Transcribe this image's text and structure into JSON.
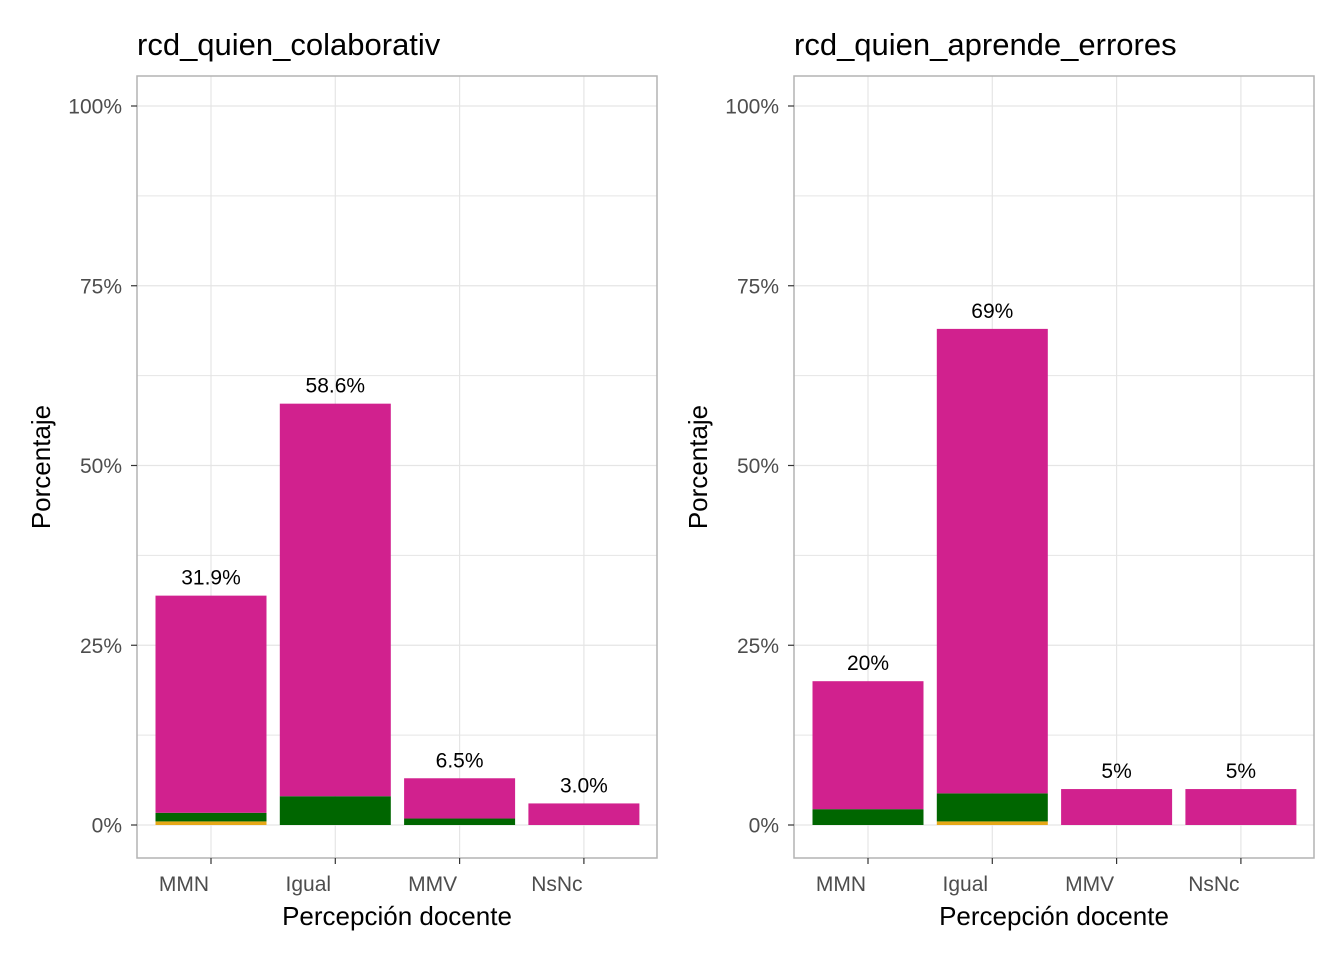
{
  "colors": {
    "background": "#ffffff",
    "panel_border": "#b3b3b3",
    "grid": "#e5e5e5",
    "tick_text": "#4d4d4d",
    "segment_magenta": "#d1218e",
    "segment_green": "#006600",
    "segment_orange": "#e6a817"
  },
  "chart_data": [
    {
      "type": "bar",
      "stacked": true,
      "title": "rcd_quien_colaborativ",
      "xlabel": "Percepción docente",
      "ylabel": "Porcentaje",
      "ylim": [
        0,
        100
      ],
      "yticks": [
        "0%",
        "25%",
        "50%",
        "75%",
        "100%"
      ],
      "ytick_values": [
        0,
        25,
        50,
        75,
        100
      ],
      "grid": true,
      "categories": [
        "MMN",
        "Igual",
        "MMV",
        "NsNc"
      ],
      "totals": [
        31.9,
        58.6,
        6.5,
        3.0
      ],
      "total_labels": [
        "31.9%",
        "58.6%",
        "6.5%",
        "3.0%"
      ],
      "series": [
        {
          "color": "#e6a817",
          "values": [
            0.5,
            0,
            0,
            0
          ]
        },
        {
          "color": "#006600",
          "values": [
            1.2,
            4.0,
            0.9,
            0
          ]
        },
        {
          "color": "#d1218e",
          "values": [
            30.2,
            54.6,
            5.6,
            3.0
          ]
        }
      ]
    },
    {
      "type": "bar",
      "stacked": true,
      "title": "rcd_quien_aprende_errores",
      "xlabel": "Percepción docente",
      "ylabel": "Porcentaje",
      "ylim": [
        0,
        100
      ],
      "yticks": [
        "0%",
        "25%",
        "50%",
        "75%",
        "100%"
      ],
      "ytick_values": [
        0,
        25,
        50,
        75,
        100
      ],
      "grid": true,
      "categories": [
        "MMN",
        "Igual",
        "MMV",
        "NsNc"
      ],
      "totals": [
        20,
        69,
        5,
        5
      ],
      "total_labels": [
        "20%",
        "69%",
        "5%",
        "5%"
      ],
      "series": [
        {
          "color": "#e6a817",
          "values": [
            0,
            0.5,
            0,
            0
          ]
        },
        {
          "color": "#006600",
          "values": [
            2.2,
            3.9,
            0,
            0
          ]
        },
        {
          "color": "#d1218e",
          "values": [
            17.8,
            64.6,
            5,
            5
          ]
        }
      ]
    }
  ]
}
